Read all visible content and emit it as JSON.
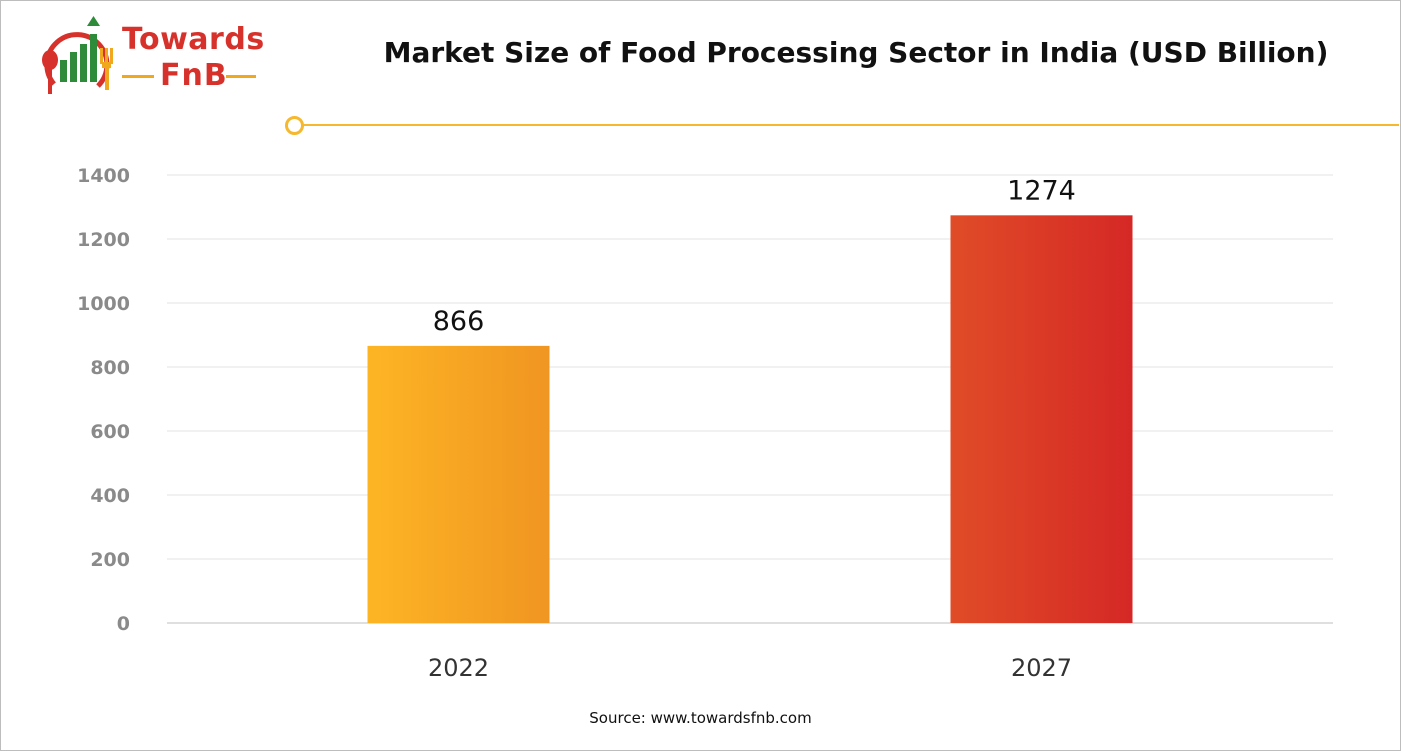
{
  "brand": {
    "line1": "Towards",
    "line2": "FnB",
    "colors": {
      "red": "#d7312b",
      "green": "#2e8b3a",
      "yellow": "#f0a81c"
    }
  },
  "source": "Source: www.towardsfnb.com",
  "chart_data": {
    "type": "bar",
    "title": "Market Size of Food Processing Sector in India (USD Billion)",
    "categories": [
      "2022",
      "2027"
    ],
    "values": [
      866,
      1274
    ],
    "data_labels": [
      "866",
      "1274"
    ],
    "yticks": [
      "0",
      "200",
      "400",
      "600",
      "800",
      "1000",
      "1200",
      "1400"
    ],
    "ylim": [
      0,
      1400
    ],
    "xlabel": "",
    "ylabel": "",
    "grid": true,
    "bar_colors": [
      {
        "from": "#fdb524",
        "to": "#f09522"
      },
      {
        "from": "#e04c27",
        "to": "#d52826"
      }
    ]
  }
}
